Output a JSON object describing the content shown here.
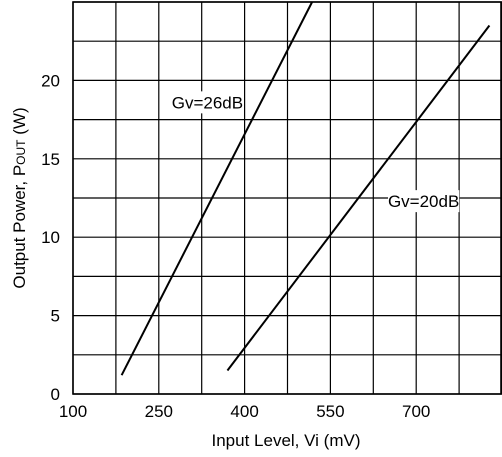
{
  "chart_data": {
    "type": "line",
    "title": "",
    "xlabel": "Input Level, Vi (mV)",
    "ylabel": "Output Power, Pout (W)",
    "ylabel_main": "Output Power, P",
    "ylabel_sub": "OUT",
    "ylabel_tail": " (W)",
    "xlim": [
      100,
      850
    ],
    "ylim": [
      0,
      25
    ],
    "x_ticks": [
      100,
      250,
      400,
      550,
      700
    ],
    "y_ticks": [
      0,
      5,
      10,
      15,
      20
    ],
    "x_tick_labels": [
      "100",
      "250",
      "400",
      "550",
      "700"
    ],
    "y_tick_labels": [
      "0",
      "5",
      "10",
      "15",
      "20"
    ],
    "x_grid_step": 75,
    "y_grid_step": 2.5,
    "grid": true,
    "series": [
      {
        "name": "Gv=26dB",
        "x": [
          185,
          518
        ],
        "y": [
          1.2,
          25
        ]
      },
      {
        "name": "Gv=20dB",
        "x": [
          370,
          828
        ],
        "y": [
          1.5,
          23.5
        ]
      }
    ],
    "annotations": [
      {
        "text": "Gv=26dB",
        "x": 335,
        "y": 18.6,
        "series": 0
      },
      {
        "text": "Gv=20dB",
        "x": 713,
        "y": 12.3,
        "series": 1
      }
    ]
  },
  "colors": {
    "line": "#000000",
    "grid": "#000000",
    "background": "#ffffff"
  }
}
